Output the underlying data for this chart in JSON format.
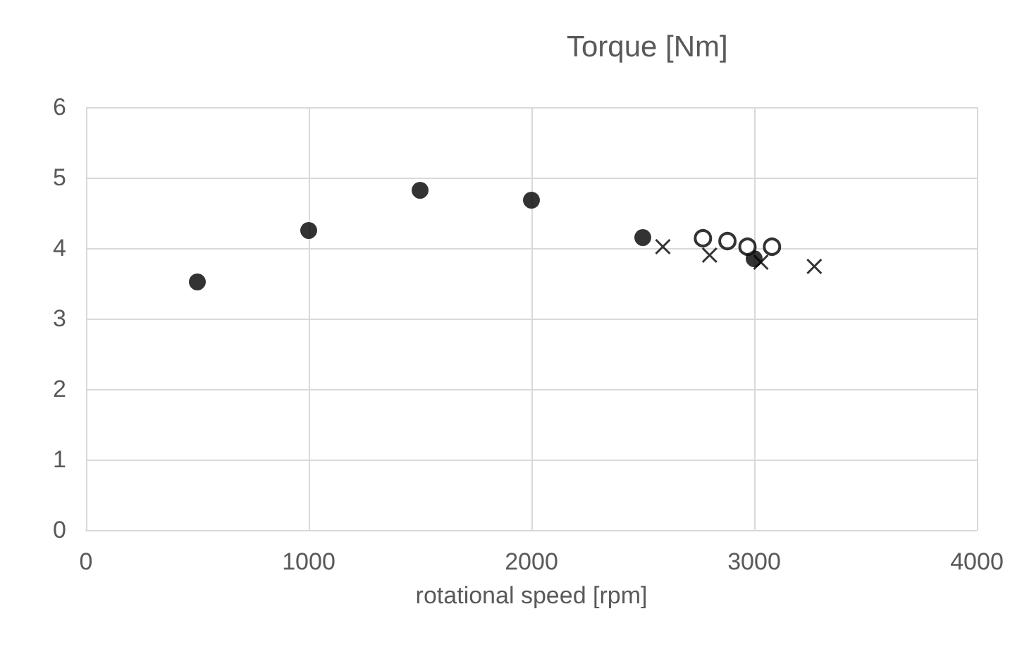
{
  "chart_data": {
    "type": "scatter",
    "title": "Torque [Nm]",
    "xlabel": "rotational speed [rpm]",
    "xlim": [
      0,
      4000
    ],
    "xticks": [
      0,
      1000,
      2000,
      3000,
      4000
    ],
    "ylim": [
      0,
      6
    ],
    "yticks": [
      0,
      1,
      2,
      3,
      4,
      5,
      6
    ],
    "grid": true,
    "series": [
      {
        "color": "#000000",
        "marker": "circle",
        "x": [
          500,
          1000,
          1500,
          2000,
          2500,
          3000
        ],
        "values": [
          3.52,
          4.25,
          4.82,
          4.68,
          4.15,
          3.85
        ]
      },
      {
        "color": "#000000",
        "marker": "open-circle",
        "x": [
          2770,
          2880,
          2970,
          3080
        ],
        "values": [
          4.14,
          4.1,
          4.02,
          4.02
        ]
      },
      {
        "color": "#000000",
        "marker": "cross",
        "x": [
          2590,
          2800,
          3030,
          3270
        ],
        "values": [
          4.02,
          3.9,
          3.8,
          3.74
        ]
      }
    ]
  }
}
